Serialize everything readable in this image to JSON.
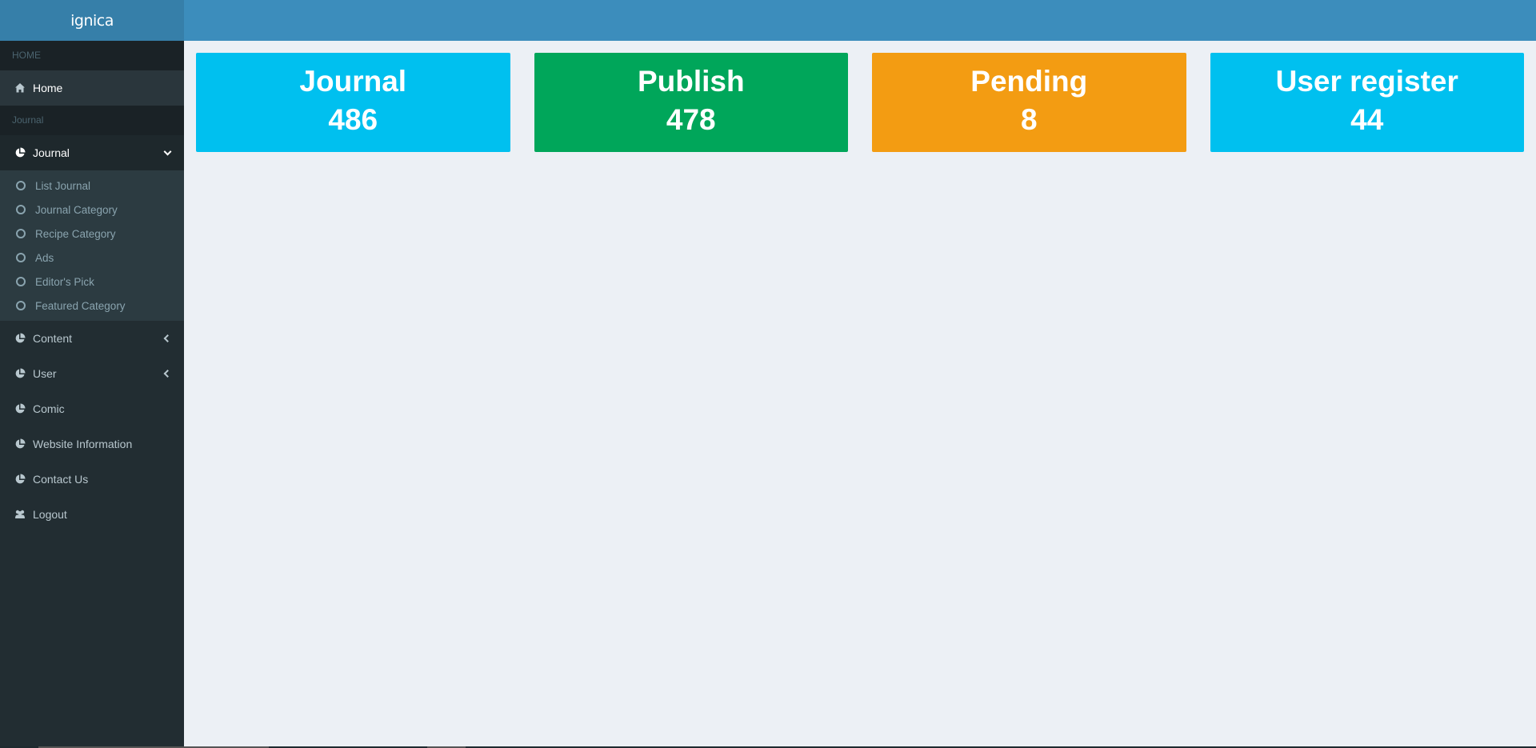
{
  "brand": {
    "logo": "ignica"
  },
  "sidebar": {
    "section_home": "HOME",
    "home": "Home",
    "section_journal": "Journal",
    "journal": "Journal",
    "journal_sub": [
      "List Journal",
      "Journal Category",
      "Recipe Category",
      "Ads",
      "Editor's Pick",
      "Featured Category"
    ],
    "content": "Content",
    "user": "User",
    "comic": "Comic",
    "website_information": "Website Information",
    "contact_us": "Contact Us",
    "logout": "Logout"
  },
  "stats": [
    {
      "title": "Journal",
      "value": "486",
      "color": "#00c0ef"
    },
    {
      "title": "Publish",
      "value": "478",
      "color": "#00a65a"
    },
    {
      "title": "Pending",
      "value": "8",
      "color": "#f39c12"
    },
    {
      "title": "User register",
      "value": "44",
      "color": "#00c0ef"
    }
  ],
  "colors": {
    "header": "#3c8dbc",
    "logo_bg": "#367fa9",
    "sidebar": "#222d32",
    "content_bg": "#ecf0f5"
  }
}
